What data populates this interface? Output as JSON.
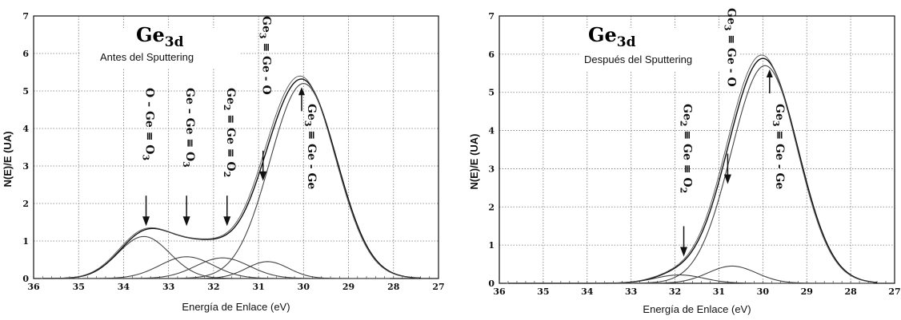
{
  "chart_data": [
    {
      "type": "line",
      "panel": "left",
      "title": "Ge",
      "title_subscript": "3d",
      "subtitle": "Antes del Sputtering",
      "xlabel": "Energía de Enlace (eV)",
      "ylabel": "N(E)/E (UA)",
      "xlim": [
        36,
        27
      ],
      "ylim": [
        0,
        7
      ],
      "x_ticks": [
        36,
        35,
        34,
        33,
        32,
        31,
        30,
        29,
        28,
        27
      ],
      "y_ticks": [
        0,
        1,
        2,
        3,
        4,
        5,
        6,
        7
      ],
      "grid": true,
      "components": [
        {
          "center": 33.55,
          "amplitude": 1.12,
          "fwhm": 1.35
        },
        {
          "center": 32.6,
          "amplitude": 0.58,
          "fwhm": 1.4
        },
        {
          "center": 31.8,
          "amplitude": 0.55,
          "fwhm": 1.4
        },
        {
          "center": 30.8,
          "amplitude": 0.45,
          "fwhm": 1.1
        },
        {
          "center": 30.0,
          "amplitude": 5.2,
          "fwhm": 1.75
        }
      ],
      "envelope_peak": {
        "x": 30.0,
        "y": 5.3
      },
      "annotations": [
        {
          "x": 33.5,
          "lines": [
            "O",
            "–",
            "Ge",
            "≡",
            "O",
            "3"
          ],
          "arrow_y": 1.4
        },
        {
          "x": 32.6,
          "lines": [
            "Ge",
            "–",
            "Ge",
            "≡",
            "O",
            "3"
          ],
          "arrow_y": 1.4
        },
        {
          "x": 31.7,
          "lines": [
            "Ge",
            "2",
            "≡",
            "Ge",
            "≡",
            "O",
            "2"
          ],
          "arrow_y": 1.4
        },
        {
          "x": 30.9,
          "lines": [
            "Ge",
            "3",
            "≡",
            "Ge",
            "-",
            "O"
          ],
          "arrow_y": 2.6
        },
        {
          "x": 29.9,
          "lines": [
            "Ge",
            "3",
            "≡",
            "Ge",
            "-",
            "Ge"
          ],
          "arrow_y": 5.1
        }
      ]
    },
    {
      "type": "line",
      "panel": "right",
      "title": "Ge",
      "title_subscript": "3d",
      "subtitle": "Después del Sputtering",
      "xlabel": "Energía de Enlace (eV)",
      "ylabel": "N(E)/E (UA)",
      "xlim": [
        36,
        27
      ],
      "ylim": [
        0,
        7
      ],
      "x_ticks": [
        36,
        35,
        34,
        33,
        32,
        31,
        30,
        29,
        28,
        27
      ],
      "y_ticks": [
        0,
        1,
        2,
        3,
        4,
        5,
        6,
        7
      ],
      "grid": true,
      "components": [
        {
          "center": 31.9,
          "amplitude": 0.22,
          "fwhm": 1.3
        },
        {
          "center": 30.7,
          "amplitude": 0.45,
          "fwhm": 1.3
        },
        {
          "center": 29.95,
          "amplitude": 5.7,
          "fwhm": 1.8
        }
      ],
      "envelope_peak": {
        "x": 29.95,
        "y": 5.8
      },
      "annotations": [
        {
          "x": 31.8,
          "lines": [
            "Ge",
            "2",
            "≡",
            "Ge",
            "≡",
            "O",
            "2"
          ],
          "arrow_y": 0.7
        },
        {
          "x": 30.8,
          "lines": [
            "Ge",
            "3",
            "≡",
            "Ge",
            "-",
            "O"
          ],
          "arrow_y": 2.6
        },
        {
          "x": 29.7,
          "lines": [
            "Ge",
            "3",
            "≡",
            "Ge",
            "-",
            "Ge"
          ],
          "arrow_y": 5.6
        }
      ]
    }
  ]
}
